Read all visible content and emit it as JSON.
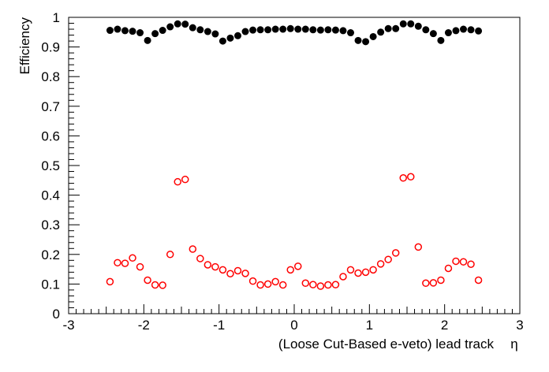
{
  "chart_data": {
    "type": "scatter",
    "title": "",
    "xlabel": "(Loose Cut-Based e-veto)  lead track",
    "xlabel_symbol": "η",
    "ylabel": "Efficiency",
    "xlim": [
      -3,
      3
    ],
    "ylim": [
      0,
      1
    ],
    "x_ticks": [
      -3,
      -2,
      -1,
      0,
      1,
      2,
      3
    ],
    "x_tick_labels": [
      "-3",
      "-2",
      "-1",
      "0",
      "1",
      "2",
      "3"
    ],
    "y_ticks": [
      0,
      0.1,
      0.2,
      0.3,
      0.4,
      0.5,
      0.6,
      0.7,
      0.8,
      0.9,
      1
    ],
    "y_tick_labels": [
      "0",
      "0.1",
      "0.2",
      "0.3",
      "0.4",
      "0.5",
      "0.6",
      "0.7",
      "0.8",
      "0.9",
      "1"
    ],
    "grid": false,
    "legend": "none",
    "x": [
      -2.45,
      -2.35,
      -2.25,
      -2.15,
      -2.05,
      -1.95,
      -1.85,
      -1.75,
      -1.65,
      -1.55,
      -1.45,
      -1.35,
      -1.25,
      -1.15,
      -1.05,
      -0.95,
      -0.85,
      -0.75,
      -0.65,
      -0.55,
      -0.45,
      -0.35,
      -0.25,
      -0.15,
      -0.05,
      0.05,
      0.15,
      0.25,
      0.35,
      0.45,
      0.55,
      0.65,
      0.75,
      0.85,
      0.95,
      1.05,
      1.15,
      1.25,
      1.35,
      1.45,
      1.55,
      1.65,
      1.75,
      1.85,
      1.95,
      2.05,
      2.15,
      2.25,
      2.35,
      2.45
    ],
    "series": [
      {
        "color": "#000000",
        "marker": "filled-circle",
        "values": [
          0.956,
          0.96,
          0.955,
          0.953,
          0.948,
          0.922,
          0.945,
          0.956,
          0.968,
          0.978,
          0.977,
          0.965,
          0.958,
          0.952,
          0.944,
          0.92,
          0.93,
          0.938,
          0.952,
          0.957,
          0.958,
          0.958,
          0.96,
          0.96,
          0.962,
          0.96,
          0.96,
          0.958,
          0.957,
          0.958,
          0.957,
          0.955,
          0.948,
          0.922,
          0.918,
          0.935,
          0.95,
          0.962,
          0.962,
          0.978,
          0.978,
          0.97,
          0.958,
          0.945,
          0.922,
          0.948,
          0.955,
          0.96,
          0.958,
          0.954
        ]
      },
      {
        "color": "#ff0000",
        "marker": "open-circle",
        "values": [
          0.108,
          0.172,
          0.17,
          0.188,
          0.158,
          0.113,
          0.097,
          0.096,
          0.2,
          0.445,
          0.453,
          0.218,
          0.186,
          0.165,
          0.158,
          0.148,
          0.135,
          0.145,
          0.136,
          0.11,
          0.097,
          0.1,
          0.108,
          0.097,
          0.148,
          0.16,
          0.103,
          0.098,
          0.093,
          0.097,
          0.098,
          0.125,
          0.148,
          0.137,
          0.14,
          0.148,
          0.168,
          0.183,
          0.205,
          0.458,
          0.462,
          0.225,
          0.103,
          0.104,
          0.113,
          0.153,
          0.177,
          0.175,
          0.167,
          0.113
        ]
      }
    ]
  }
}
